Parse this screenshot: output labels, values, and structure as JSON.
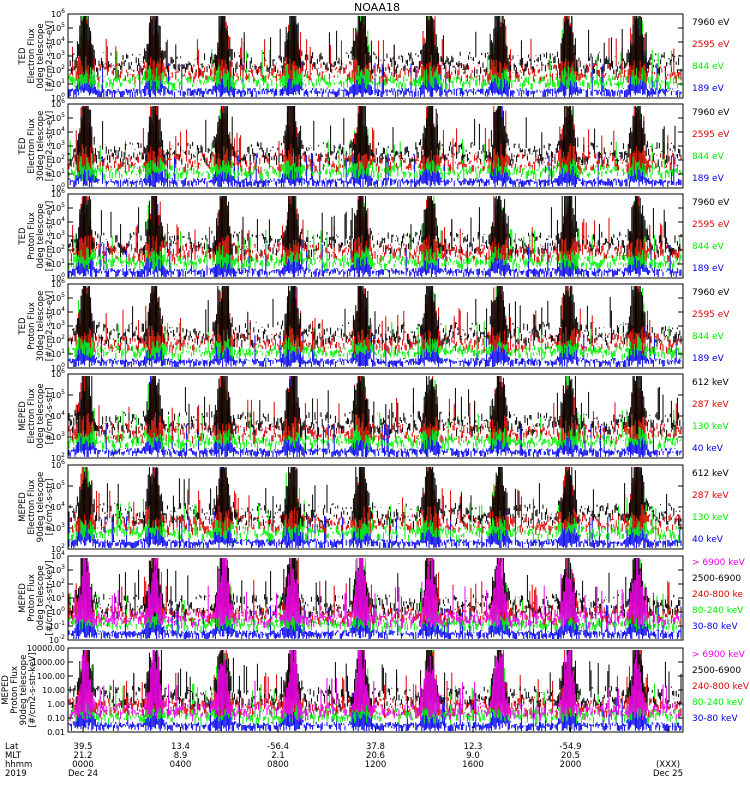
{
  "title": "NOAA18",
  "colors": {
    "black": "#000000",
    "red": "#dd0000",
    "green": "#00ee00",
    "blue": "#0000ee",
    "magenta": "#ee00ee"
  },
  "x_axis": {
    "row_labels": [
      "Lat",
      "MLT",
      "hhmm",
      "2019"
    ],
    "ticks": [
      {
        "lat": "39.5",
        "mlt": "21.2",
        "hhmm": "0000",
        "date": "Dec 24"
      },
      {
        "lat": "13.4",
        "mlt": "8.9",
        "hhmm": "0400",
        "date": ""
      },
      {
        "lat": "-56.4",
        "mlt": "2.1",
        "hhmm": "0800",
        "date": ""
      },
      {
        "lat": "37.8",
        "mlt": "20.6",
        "hhmm": "1200",
        "date": ""
      },
      {
        "lat": "12.3",
        "mlt": "9.0",
        "hhmm": "1600",
        "date": ""
      },
      {
        "lat": "-54.9",
        "mlt": "20.5",
        "hhmm": "2000",
        "date": ""
      },
      {
        "lat": "",
        "mlt": "",
        "hhmm": "(XXX)",
        "date": "Dec 25"
      }
    ]
  },
  "chart_data": [
    {
      "type": "line",
      "ylabel": [
        "TED",
        "Electron Flux",
        "0deg telescope",
        "[#/cm2-s-str-eV]"
      ],
      "scale": "log",
      "ylim": [
        1,
        1000000
      ],
      "yticks": [
        {
          "base": "10",
          "exp": "0"
        },
        {
          "base": "10",
          "exp": "1"
        },
        {
          "base": "10",
          "exp": "2"
        },
        {
          "base": "10",
          "exp": "3"
        },
        {
          "base": "10",
          "exp": "4"
        },
        {
          "base": "10",
          "exp": "5"
        },
        {
          "base": "10",
          "exp": "6"
        }
      ],
      "series": [
        {
          "name": "7960 eV",
          "color": "#000000"
        },
        {
          "name": "2595 eV",
          "color": "#dd0000"
        },
        {
          "name": "844 eV",
          "color": "#00ee00"
        },
        {
          "name": "189 eV",
          "color": "#0000ee"
        }
      ]
    },
    {
      "type": "line",
      "ylabel": [
        "TED",
        "Electron Flux",
        "30deg telescope",
        "[#/cm2-s-str-eV]"
      ],
      "scale": "log",
      "ylim": [
        1,
        1000000
      ],
      "yticks": [
        {
          "base": "10",
          "exp": "0"
        },
        {
          "base": "10",
          "exp": "1"
        },
        {
          "base": "10",
          "exp": "2"
        },
        {
          "base": "10",
          "exp": "3"
        },
        {
          "base": "10",
          "exp": "4"
        },
        {
          "base": "10",
          "exp": "5"
        },
        {
          "base": "10",
          "exp": "6"
        }
      ],
      "series": [
        {
          "name": "7960 eV",
          "color": "#000000"
        },
        {
          "name": "2595 eV",
          "color": "#dd0000"
        },
        {
          "name": "844 eV",
          "color": "#00ee00"
        },
        {
          "name": "189 eV",
          "color": "#0000ee"
        }
      ]
    },
    {
      "type": "line",
      "ylabel": [
        "TED",
        "Proton Flux",
        "0deg telescope",
        "[#/cm2-s-str-eV]"
      ],
      "scale": "log",
      "ylim": [
        1,
        1000000
      ],
      "yticks": [
        {
          "base": "10",
          "exp": "0"
        },
        {
          "base": "10",
          "exp": "1"
        },
        {
          "base": "10",
          "exp": "2"
        },
        {
          "base": "10",
          "exp": "3"
        },
        {
          "base": "10",
          "exp": "4"
        },
        {
          "base": "10",
          "exp": "5"
        },
        {
          "base": "10",
          "exp": "6"
        }
      ],
      "series": [
        {
          "name": "7960 eV",
          "color": "#000000"
        },
        {
          "name": "2595 eV",
          "color": "#dd0000"
        },
        {
          "name": "844 eV",
          "color": "#00ee00"
        },
        {
          "name": "189 eV",
          "color": "#0000ee"
        }
      ]
    },
    {
      "type": "line",
      "ylabel": [
        "TED",
        "Proton Flux",
        "30deg telescope",
        "[#/cm2-s-str-eV]"
      ],
      "scale": "log",
      "ylim": [
        1,
        1000000
      ],
      "yticks": [
        {
          "base": "10",
          "exp": "0"
        },
        {
          "base": "10",
          "exp": "1"
        },
        {
          "base": "10",
          "exp": "2"
        },
        {
          "base": "10",
          "exp": "3"
        },
        {
          "base": "10",
          "exp": "4"
        },
        {
          "base": "10",
          "exp": "5"
        },
        {
          "base": "10",
          "exp": "6"
        }
      ],
      "series": [
        {
          "name": "7960 eV",
          "color": "#000000"
        },
        {
          "name": "2595 eV",
          "color": "#dd0000"
        },
        {
          "name": "844 eV",
          "color": "#00ee00"
        },
        {
          "name": "189 eV",
          "color": "#0000ee"
        }
      ]
    },
    {
      "type": "line",
      "ylabel": [
        "MEPED",
        "Electron Flux",
        "0deg telescope",
        "[#/cm2-s-str]"
      ],
      "scale": "log",
      "ylim": [
        10,
        1000000
      ],
      "yticks": [
        {
          "base": "10",
          "exp": "2"
        },
        {
          "base": "10",
          "exp": "3"
        },
        {
          "base": "10",
          "exp": "4"
        },
        {
          "base": "10",
          "exp": "5"
        },
        {
          "base": "10",
          "exp": "6"
        }
      ],
      "series": [
        {
          "name": "612 keV",
          "color": "#000000"
        },
        {
          "name": "287 keV",
          "color": "#dd0000"
        },
        {
          "name": "130 keV",
          "color": "#00ee00"
        },
        {
          "name": "40 keV",
          "color": "#0000ee"
        }
      ]
    },
    {
      "type": "line",
      "ylabel": [
        "MEPED",
        "Electron Flux",
        "90deg telescope",
        "[#/cm2-s-str]"
      ],
      "scale": "log",
      "ylim": [
        10,
        1000000
      ],
      "yticks": [
        {
          "base": "10",
          "exp": "2"
        },
        {
          "base": "10",
          "exp": "3"
        },
        {
          "base": "10",
          "exp": "4"
        },
        {
          "base": "10",
          "exp": "5"
        },
        {
          "base": "10",
          "exp": "6"
        }
      ],
      "series": [
        {
          "name": "612 keV",
          "color": "#000000"
        },
        {
          "name": "287 keV",
          "color": "#dd0000"
        },
        {
          "name": "130 keV",
          "color": "#00ee00"
        },
        {
          "name": "40 keV",
          "color": "#0000ee"
        }
      ]
    },
    {
      "type": "line",
      "ylabel": [
        "MEPED",
        "Proton Flux",
        "0deg telescope",
        "[#/cm2-s-str-keV]"
      ],
      "scale": "log",
      "ylim": [
        0.01,
        10000
      ],
      "yticks": [
        {
          "base": "10",
          "exp": "-2"
        },
        {
          "base": "10",
          "exp": "-1"
        },
        {
          "base": "10",
          "exp": "0"
        },
        {
          "base": "10",
          "exp": "1"
        },
        {
          "base": "10",
          "exp": "2"
        },
        {
          "base": "10",
          "exp": "3"
        },
        {
          "base": "10",
          "exp": "4"
        }
      ],
      "series": [
        {
          "name": "> 6900 keV",
          "color": "#ee00ee"
        },
        {
          "name": "2500-6900",
          "color": "#000000"
        },
        {
          "name": "240-800 ke",
          "color": "#dd0000"
        },
        {
          "name": "80-240 keV",
          "color": "#00ee00"
        },
        {
          "name": "30-80 keV",
          "color": "#0000ee"
        }
      ]
    },
    {
      "type": "line",
      "ylabel": [
        "MEPED",
        "Proton Flux",
        "90deg telescope",
        "[#/cm2-s-str-keV]"
      ],
      "scale": "log",
      "ylim": [
        0.01,
        10000
      ],
      "yticks": [
        {
          "base": "",
          "exp": "",
          "text": "0.01"
        },
        {
          "base": "",
          "exp": "",
          "text": "0.10"
        },
        {
          "base": "",
          "exp": "",
          "text": "1.00"
        },
        {
          "base": "",
          "exp": "",
          "text": "10.00"
        },
        {
          "base": "",
          "exp": "",
          "text": "100.00"
        },
        {
          "base": "",
          "exp": "",
          "text": "1000.00"
        },
        {
          "base": "",
          "exp": "",
          "text": "10000.00"
        }
      ],
      "series": [
        {
          "name": "> 6900 keV",
          "color": "#ee00ee"
        },
        {
          "name": "2500-6900",
          "color": "#000000"
        },
        {
          "name": "240-800 keV",
          "color": "#dd0000"
        },
        {
          "name": "80-240 keV",
          "color": "#00ee00"
        },
        {
          "name": "30-80 keV",
          "color": "#0000ee"
        }
      ]
    }
  ]
}
